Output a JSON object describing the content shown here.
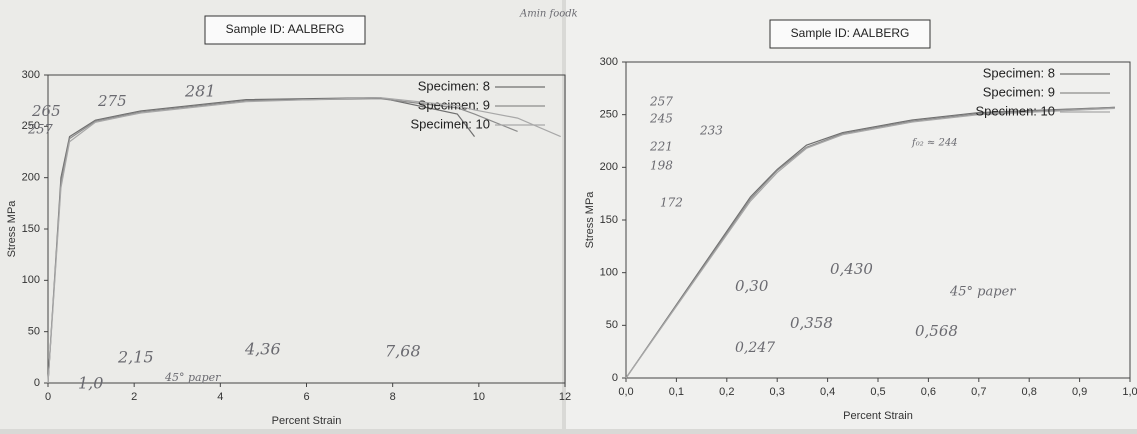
{
  "chart_data": [
    {
      "type": "line",
      "title": "Sample ID: AALBERG",
      "x_label": "Percent Strain",
      "y_label": "Stress MPa",
      "x": [
        0,
        0.3,
        0.5,
        1.1,
        2.15,
        4.6,
        7.7,
        9.5,
        9.9,
        10.9,
        11.9
      ],
      "series": [
        {
          "name": "Specimen: 8",
          "color": "#6f6f6f",
          "values": [
            0,
            200,
            240,
            256,
            265,
            276,
            278,
            262,
            240,
            null,
            null
          ]
        },
        {
          "name": "Specimen: 9",
          "color": "#8c8c8c",
          "values": [
            0,
            195,
            238,
            255,
            264,
            275,
            277,
            268,
            262,
            245,
            null
          ]
        },
        {
          "name": "Specimen: 10",
          "color": "#a8a8a8",
          "values": [
            0,
            190,
            235,
            254,
            263,
            274,
            278,
            270,
            266,
            258,
            240
          ]
        }
      ],
      "xlim": [
        0,
        12
      ],
      "xticks": [
        0,
        2,
        4,
        6,
        8,
        10,
        12
      ],
      "ylim": [
        0,
        300
      ],
      "yticks": [
        0,
        50,
        100,
        150,
        200,
        250,
        300
      ],
      "annotations": [
        "Amin foodk",
        "265",
        "275",
        "281",
        "257",
        "2,15",
        "45° paper",
        "4,36",
        "7,68",
        "1,0"
      ]
    },
    {
      "type": "line",
      "title": "Sample ID: AALBERG",
      "x_label": "Percent Strain",
      "y_label": "Stress MPa",
      "x": [
        0,
        0.247,
        0.3,
        0.358,
        0.43,
        0.568,
        0.7,
        0.97
      ],
      "series": [
        {
          "name": "Specimen: 8",
          "color": "#6f6f6f",
          "values": [
            0,
            172,
            198,
            221,
            233,
            245,
            252,
            257
          ]
        },
        {
          "name": "Specimen: 9",
          "color": "#8c8c8c",
          "values": [
            0,
            170,
            197,
            219,
            232,
            244,
            251,
            257
          ]
        },
        {
          "name": "Specimen: 10",
          "color": "#a8a8a8",
          "values": [
            0,
            168,
            195,
            218,
            231,
            243,
            250,
            256
          ]
        }
      ],
      "xlim": [
        0,
        1
      ],
      "xticks": [
        {
          "value": 0,
          "label": "0,0"
        },
        {
          "value": 0.1,
          "label": "0,1"
        },
        {
          "value": 0.2,
          "label": "0,2"
        },
        {
          "value": 0.3,
          "label": "0,3"
        },
        {
          "value": 0.4,
          "label": "0,4"
        },
        {
          "value": 0.5,
          "label": "0,5"
        },
        {
          "value": 0.6,
          "label": "0,6"
        },
        {
          "value": 0.7,
          "label": "0,7"
        },
        {
          "value": 0.8,
          "label": "0,8"
        },
        {
          "value": 0.9,
          "label": "0,9"
        },
        {
          "value": 1,
          "label": "1,0"
        }
      ],
      "ylim": [
        0,
        300
      ],
      "yticks": [
        0,
        50,
        100,
        150,
        200,
        250,
        300
      ],
      "annotations": [
        "257",
        "245",
        "233",
        "221",
        "198",
        "172",
        "f₀₂ ≈ 244",
        "0,30",
        "0,430",
        "45° paper",
        "0,247",
        "0,358",
        "0,568"
      ]
    }
  ]
}
